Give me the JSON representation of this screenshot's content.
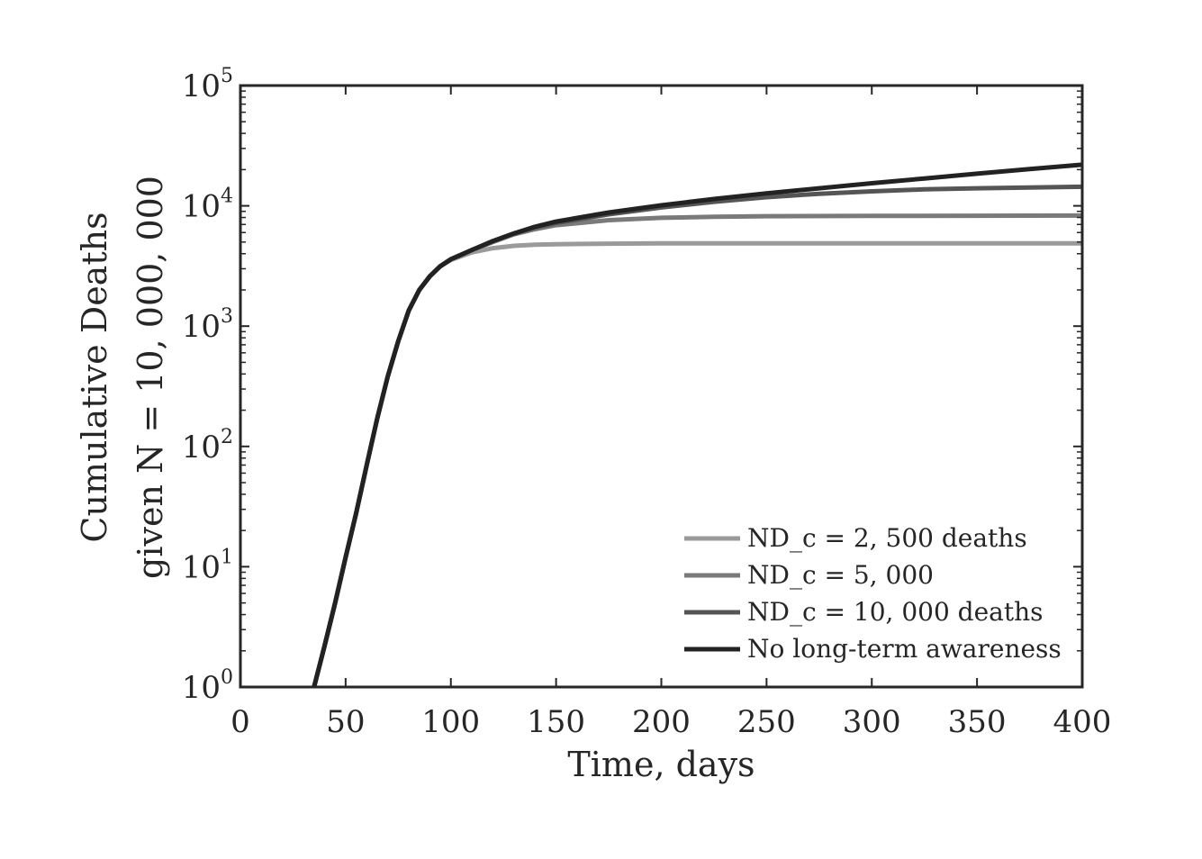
{
  "chart_data": {
    "type": "line",
    "xlabel": "Time, days",
    "ylabel_line1": "Cumulative Deaths",
    "ylabel_line2": "given N = 10, 000, 000",
    "x_scale": "linear",
    "y_scale": "log",
    "xlim": [
      0,
      400
    ],
    "ylim": [
      1,
      100000
    ],
    "x_ticks": [
      0,
      50,
      100,
      150,
      200,
      250,
      300,
      350,
      400
    ],
    "x_tick_labels": [
      "0",
      "50",
      "100",
      "150",
      "200",
      "250",
      "300",
      "350",
      "400"
    ],
    "y_ticks": [
      1,
      10,
      100,
      1000,
      10000,
      100000
    ],
    "y_tick_base": "10",
    "y_tick_exponents": [
      "0",
      "1",
      "2",
      "3",
      "4",
      "5"
    ],
    "grid": false,
    "legend_position": "bottom-right",
    "series": [
      {
        "name": "ND_c = 2, 500 deaths",
        "color": "#9a9a9a",
        "x": [
          35,
          40,
          45,
          50,
          55,
          60,
          65,
          70,
          75,
          80,
          85,
          90,
          95,
          100,
          110,
          120,
          130,
          140,
          150,
          175,
          200,
          250,
          300,
          350,
          400
        ],
        "y": [
          1,
          2.2,
          5,
          12,
          28,
          70,
          170,
          380,
          750,
          1350,
          2000,
          2600,
          3150,
          3550,
          4100,
          4450,
          4650,
          4750,
          4800,
          4850,
          4870,
          4880,
          4880,
          4880,
          4880
        ]
      },
      {
        "name": "ND_c = 5, 000",
        "color": "#7a7a7a",
        "x": [
          35,
          40,
          45,
          50,
          55,
          60,
          65,
          70,
          75,
          80,
          85,
          90,
          95,
          100,
          110,
          120,
          130,
          140,
          150,
          175,
          200,
          225,
          250,
          300,
          350,
          400
        ],
        "y": [
          1,
          2.2,
          5,
          12,
          28,
          70,
          170,
          380,
          750,
          1350,
          2000,
          2600,
          3150,
          3600,
          4300,
          5000,
          5800,
          6400,
          6900,
          7600,
          7950,
          8100,
          8200,
          8250,
          8280,
          8300
        ]
      },
      {
        "name": "ND_c = 10, 000 deaths",
        "color": "#555555",
        "x": [
          35,
          40,
          45,
          50,
          55,
          60,
          65,
          70,
          75,
          80,
          85,
          90,
          95,
          100,
          110,
          120,
          130,
          140,
          150,
          175,
          200,
          225,
          250,
          275,
          300,
          325,
          350,
          375,
          400
        ],
        "y": [
          1,
          2.2,
          5,
          12,
          28,
          70,
          170,
          380,
          750,
          1350,
          2000,
          2600,
          3150,
          3600,
          4300,
          5100,
          5900,
          6600,
          7200,
          8500,
          9700,
          10800,
          11800,
          12600,
          13200,
          13700,
          14000,
          14200,
          14400
        ]
      },
      {
        "name": "No long-term awareness",
        "color": "#222222",
        "x": [
          35,
          40,
          45,
          50,
          55,
          60,
          65,
          70,
          75,
          80,
          85,
          90,
          95,
          100,
          110,
          120,
          130,
          140,
          150,
          175,
          200,
          225,
          250,
          275,
          300,
          325,
          350,
          375,
          400
        ],
        "y": [
          1,
          2.2,
          5,
          12,
          28,
          70,
          170,
          380,
          750,
          1350,
          2000,
          2600,
          3150,
          3600,
          4300,
          5100,
          5900,
          6700,
          7400,
          8800,
          10100,
          11400,
          12700,
          14000,
          15400,
          16900,
          18500,
          20200,
          22000
        ]
      }
    ]
  }
}
